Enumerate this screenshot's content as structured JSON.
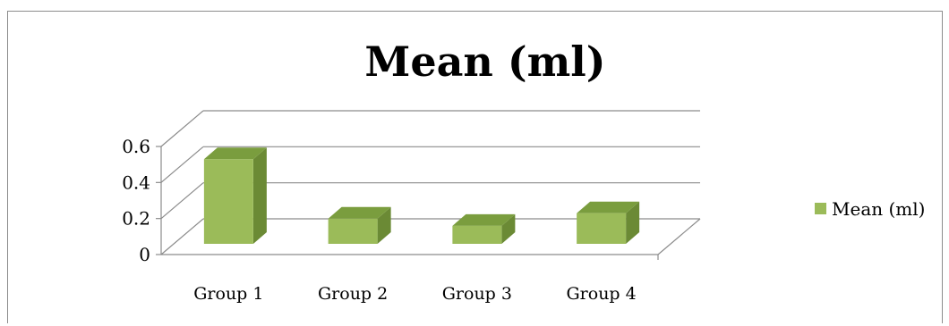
{
  "chart_data": {
    "type": "bar",
    "title": "Mean (ml)",
    "categories": [
      "Group 1",
      "Group 2",
      "Group 3",
      "Group 4"
    ],
    "series": [
      {
        "name": "Mean (ml)",
        "values": [
          0.47,
          0.14,
          0.1,
          0.17
        ]
      }
    ],
    "yticks": [
      "0",
      "0.2",
      "0.4",
      "0.6"
    ],
    "ylim": [
      0,
      0.6
    ],
    "grid": true,
    "legend": "right",
    "colors": {
      "front": "#9bbb59",
      "side": "#6b8a35",
      "top": "#7a9d3e",
      "grid": "#8c8c8c"
    }
  }
}
